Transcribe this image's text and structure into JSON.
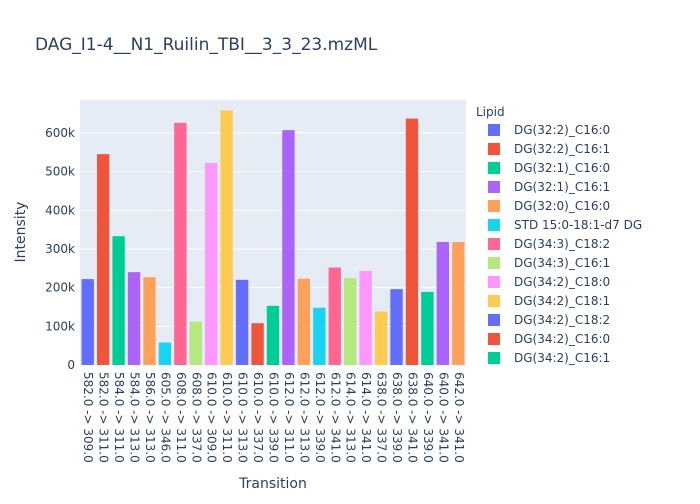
{
  "chart_data": {
    "type": "bar",
    "title": "DAG_I1-4__N1_Ruilin_TBI__3_3_23.mzML",
    "xlabel": "Transition",
    "ylabel": "Intensity",
    "ylim": [
      0,
      685000
    ],
    "yticks": [
      0,
      100000,
      200000,
      300000,
      400000,
      500000,
      600000
    ],
    "ytick_labels": [
      "0",
      "100k",
      "200k",
      "300k",
      "400k",
      "500k",
      "600k"
    ],
    "grid": true,
    "legend_title": "Lipid",
    "legend_position": "right",
    "series": [
      {
        "name": "DG(32:2)_C16:0",
        "color": "#636efa"
      },
      {
        "name": "DG(32:2)_C16:1",
        "color": "#EF553B"
      },
      {
        "name": "DG(32:1)_C16:0",
        "color": "#00cc96"
      },
      {
        "name": "DG(32:1)_C16:1",
        "color": "#ab63fa"
      },
      {
        "name": "DG(32:0)_C16:0",
        "color": "#FFA15A"
      },
      {
        "name": "STD 15:0-18:1-d7 DG",
        "color": "#19d3f3"
      },
      {
        "name": "DG(34:3)_C18:2",
        "color": "#FF6692"
      },
      {
        "name": "DG(34:3)_C16:1",
        "color": "#B6E880"
      },
      {
        "name": "DG(34:2)_C18:0",
        "color": "#FF97FF"
      },
      {
        "name": "DG(34:2)_C18:1",
        "color": "#FECB52"
      },
      {
        "name": "DG(34:2)_C18:2",
        "color": "#636efa"
      },
      {
        "name": "DG(34:2)_C16:0",
        "color": "#EF553B"
      },
      {
        "name": "DG(34:2)_C16:1",
        "color": "#00cc96"
      }
    ],
    "categories": [
      "582.0 -> 309.0",
      "582.0 -> 311.0",
      "584.0 -> 311.0",
      "584.0 -> 313.0",
      "586.0 -> 313.0",
      "605.0 -> 346.0",
      "608.0 -> 311.0",
      "608.0 -> 337.0",
      "610.0 -> 309.0",
      "610.0 -> 311.0",
      "610.0 -> 313.0",
      "610.0 -> 337.0",
      "610.0 -> 339.0",
      "612.0 -> 311.0",
      "612.0 -> 313.0",
      "612.0 -> 339.0",
      "612.0 -> 341.0",
      "614.0 -> 313.0",
      "614.0 -> 341.0",
      "638.0 -> 337.0",
      "638.0 -> 339.0",
      "638.0 -> 341.0",
      "640.0 -> 339.0",
      "640.0 -> 341.0",
      "642.0 -> 341.0"
    ],
    "values": [
      222000,
      545000,
      333000,
      240000,
      227000,
      58000,
      626000,
      112000,
      522000,
      658000,
      220000,
      108000,
      153000,
      607000,
      223000,
      148000,
      252000,
      225000,
      243000,
      138000,
      196000,
      637000,
      189000,
      318000,
      318000
    ],
    "colors": [
      "#636efa",
      "#EF553B",
      "#00cc96",
      "#ab63fa",
      "#FFA15A",
      "#19d3f3",
      "#FF6692",
      "#B6E880",
      "#FF97FF",
      "#FECB52",
      "#636efa",
      "#EF553B",
      "#00cc96",
      "#ab63fa",
      "#FFA15A",
      "#19d3f3",
      "#FF6692",
      "#B6E880",
      "#FF97FF",
      "#FECB52",
      "#636efa",
      "#EF553B",
      "#00cc96",
      "#ab63fa",
      "#FFA15A"
    ],
    "plot_background": "#E5ECF6",
    "title_color": "#2a3f5f"
  }
}
